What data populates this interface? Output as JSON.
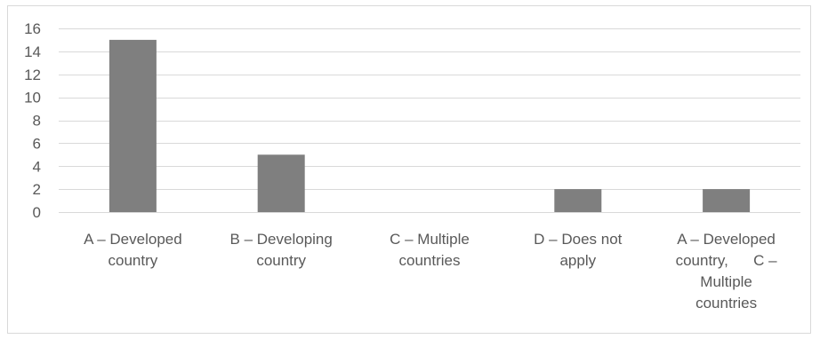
{
  "chart_data": {
    "type": "bar",
    "categories": [
      "A – Developed country",
      "B – Developing country",
      "C – Multiple countries",
      "D – Does not apply",
      "A – Developed country,     C – Multiple countries"
    ],
    "category_lines": [
      [
        "A – Developed",
        "country"
      ],
      [
        "B – Developing",
        "country"
      ],
      [
        "C – Multiple",
        "countries"
      ],
      [
        "D – Does not",
        "apply"
      ],
      [
        "A – Developed",
        "country,      C –",
        "Multiple",
        "countries"
      ]
    ],
    "values": [
      15,
      5,
      0,
      2,
      2
    ],
    "yticks": [
      0,
      2,
      4,
      6,
      8,
      10,
      12,
      14,
      16
    ],
    "ylim": [
      0,
      16
    ],
    "title": "",
    "xlabel": "",
    "ylabel": "",
    "grid": true,
    "legend": "none",
    "bar_color": "#7f7f7f",
    "grid_color": "#d9d9d9",
    "label_color": "#595959"
  }
}
